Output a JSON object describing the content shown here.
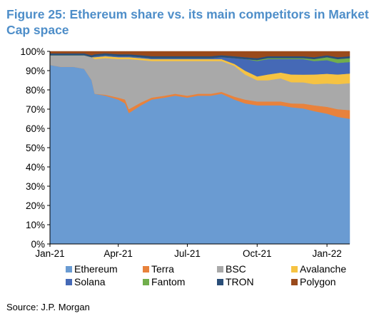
{
  "figure": {
    "title": "Figure 25: Ethereum share vs. its main competitors in Market Cap space",
    "source": "Source: J.P. Morgan"
  },
  "chart_data": {
    "type": "area",
    "stacked": true,
    "ylim": [
      0,
      100
    ],
    "y_ticks": [
      0,
      10,
      20,
      30,
      40,
      50,
      60,
      70,
      80,
      90,
      100
    ],
    "y_tick_labels": [
      "0%",
      "10%",
      "20%",
      "30%",
      "40%",
      "50%",
      "60%",
      "70%",
      "80%",
      "90%",
      "100%"
    ],
    "x_tick_labels": [
      "Jan-21",
      "Apr-21",
      "Jul-21",
      "Oct-21",
      "Jan-22"
    ],
    "x_ticks": [
      "2021-01-01",
      "2021-04-01",
      "2021-07-01",
      "2021-10-01",
      "2022-01-01"
    ],
    "xlim": [
      "2021-01-01",
      "2022-01-31"
    ],
    "grid": false,
    "legend_position": "bottom",
    "x": [
      "2021-01-01",
      "2021-01-15",
      "2021-02-01",
      "2021-02-15",
      "2021-02-25",
      "2021-03-01",
      "2021-03-15",
      "2021-04-01",
      "2021-04-10",
      "2021-04-15",
      "2021-05-01",
      "2021-05-15",
      "2021-06-01",
      "2021-06-15",
      "2021-07-01",
      "2021-07-15",
      "2021-08-01",
      "2021-08-15",
      "2021-09-01",
      "2021-09-15",
      "2021-10-01",
      "2021-10-15",
      "2021-11-01",
      "2021-11-15",
      "2021-12-01",
      "2021-12-15",
      "2022-01-01",
      "2022-01-15",
      "2022-01-31"
    ],
    "series": [
      {
        "name": "Ethereum",
        "color": "#6a9bd2",
        "values": [
          93,
          92,
          92,
          91,
          85,
          78,
          77,
          75,
          73,
          68,
          72,
          75,
          76,
          77,
          76,
          77,
          77,
          78,
          75,
          73,
          72,
          72,
          72,
          71,
          70,
          69,
          67,
          66,
          65
        ]
      },
      {
        "name": "Terra",
        "color": "#e8823c",
        "values": [
          0,
          0,
          0,
          0,
          0,
          0,
          0.5,
          1,
          2,
          2,
          1.5,
          1,
          1,
          1,
          1,
          1,
          1,
          1,
          1.5,
          2,
          2,
          2,
          2,
          2,
          2.5,
          3,
          3.5,
          4,
          4.5
        ]
      },
      {
        "name": "BSC",
        "color": "#a9a9a9",
        "values": [
          5,
          6,
          6,
          7,
          12,
          18,
          19,
          20,
          21,
          26,
          22,
          19,
          18,
          17,
          18,
          17,
          17,
          16,
          16,
          13,
          11,
          11,
          12,
          11,
          11,
          11,
          12,
          13,
          14
        ]
      },
      {
        "name": "Avalanche",
        "color": "#f6c342",
        "values": [
          0,
          0,
          0,
          0,
          0,
          1,
          1,
          1,
          1,
          1,
          1,
          1,
          1,
          1,
          1,
          1,
          1,
          1,
          1,
          2,
          2,
          3,
          3,
          4,
          4,
          5,
          5,
          5,
          5
        ]
      },
      {
        "name": "Solana",
        "color": "#4569b6",
        "values": [
          0,
          0,
          0,
          0,
          0,
          0.5,
          0.5,
          0.5,
          0.5,
          0.5,
          0.5,
          0.5,
          0.5,
          0.5,
          0.5,
          0.5,
          0.5,
          1,
          3,
          6,
          8,
          8,
          7,
          8,
          8,
          7,
          7,
          6,
          6
        ]
      },
      {
        "name": "Fantom",
        "color": "#71ae4c",
        "values": [
          0,
          0,
          0,
          0,
          0,
          0,
          0,
          0,
          0,
          0,
          0,
          0,
          0,
          0,
          0,
          0,
          0,
          0,
          0,
          0,
          0.5,
          0.5,
          0.5,
          0.5,
          0.5,
          1,
          1.5,
          2,
          2
        ]
      },
      {
        "name": "TRON",
        "color": "#2a4e78",
        "values": [
          1,
          1,
          1,
          1,
          1,
          1,
          1,
          1,
          1,
          1,
          1,
          1,
          1,
          1,
          1,
          1,
          1,
          1,
          1,
          1,
          1,
          1,
          1,
          1,
          1,
          1,
          1,
          1,
          1
        ]
      },
      {
        "name": "Polygon",
        "color": "#9a4a1b",
        "values": [
          1,
          1,
          1,
          1,
          2,
          1.5,
          1,
          1.5,
          1.5,
          1.5,
          2,
          2.5,
          2.5,
          2.5,
          2.5,
          2.5,
          2.5,
          2,
          2.5,
          3,
          3.5,
          2.5,
          2.5,
          2.5,
          2.5,
          3,
          2,
          3,
          2.5
        ]
      }
    ]
  }
}
